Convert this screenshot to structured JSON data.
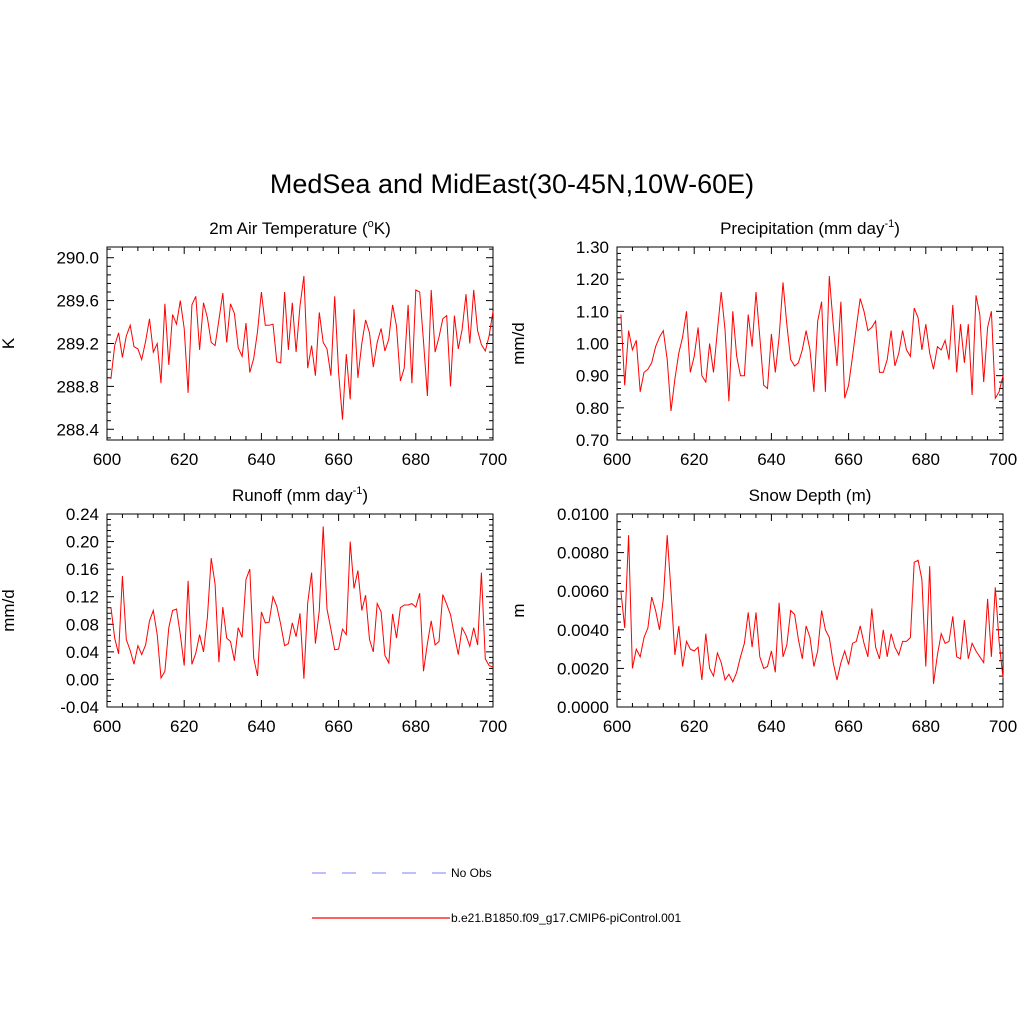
{
  "figure": {
    "title": "MedSea and MidEast(30-45N,10W-60E)",
    "legend": [
      {
        "label": "No Obs",
        "color": "#9999ff",
        "style": "dashed"
      },
      {
        "label": "b.e21.B1850.f09_g17.CMIP6-piControl.001",
        "color": "#ff0000",
        "style": "solid"
      }
    ]
  },
  "chart_data": [
    {
      "type": "line",
      "title": "2m Air Temperature (",
      "title_sup": "o",
      "title_after": "K)",
      "xlabel": "",
      "ylabel": "K",
      "xlim": [
        600,
        700
      ],
      "ylim": [
        288.3,
        290.1
      ],
      "xticks": [
        "600",
        "620",
        "640",
        "660",
        "680",
        "700"
      ],
      "yticks": [
        "288.4",
        "288.8",
        "289.2",
        "289.6",
        "290.0"
      ],
      "series": [
        {
          "name": "b.e21.B1850.f09_g17.CMIP6-piControl.001",
          "color": "#ff0000",
          "x_start": 601,
          "values": [
            288.87,
            289.18,
            289.3,
            289.07,
            289.27,
            289.37,
            289.17,
            289.15,
            289.05,
            289.22,
            289.43,
            289.12,
            289.2,
            288.83,
            289.57,
            289.0,
            289.47,
            289.38,
            289.6,
            289.34,
            288.74,
            289.56,
            289.64,
            289.14,
            289.58,
            289.44,
            289.21,
            289.18,
            289.42,
            289.67,
            289.21,
            289.57,
            289.48,
            289.16,
            289.08,
            289.39,
            288.93,
            289.06,
            289.31,
            289.68,
            289.37,
            289.37,
            289.38,
            289.03,
            289.02,
            289.68,
            289.14,
            289.58,
            289.12,
            289.55,
            289.83,
            288.97,
            289.18,
            288.9,
            289.49,
            289.21,
            289.15,
            288.9,
            289.64,
            288.93,
            288.49,
            289.1,
            288.68,
            289.52,
            288.88,
            289.2,
            289.42,
            289.3,
            288.98,
            289.21,
            289.34,
            289.13,
            289.24,
            289.56,
            289.36,
            288.85,
            288.97,
            289.56,
            288.83,
            289.7,
            289.68,
            289.22,
            288.71,
            289.7,
            289.12,
            289.26,
            289.43,
            289.46,
            288.8,
            289.46,
            289.15,
            289.33,
            289.66,
            289.2,
            289.7,
            289.32,
            289.19,
            289.13,
            289.27,
            289.5
          ]
        }
      ]
    },
    {
      "type": "line",
      "title": "Precipitation (mm day",
      "title_sup": "-1",
      "title_after": ")",
      "xlabel": "",
      "ylabel": "mm/d",
      "xlim": [
        600,
        700
      ],
      "ylim": [
        0.7,
        1.3
      ],
      "xticks": [
        "600",
        "620",
        "640",
        "660",
        "680",
        "700"
      ],
      "yticks": [
        "0.70",
        "0.80",
        "0.90",
        "1.00",
        "1.10",
        "1.20",
        "1.30"
      ],
      "series": [
        {
          "name": "b.e21.B1850.f09_g17.CMIP6-piControl.001",
          "color": "#ff0000",
          "x_start": 601,
          "values": [
            1.09,
            0.87,
            1.04,
            0.98,
            1.01,
            0.85,
            0.91,
            0.92,
            0.94,
            0.99,
            1.02,
            1.04,
            0.95,
            0.79,
            0.89,
            0.97,
            1.02,
            1.1,
            0.91,
            0.96,
            1.05,
            0.9,
            0.88,
            1.0,
            0.91,
            1.04,
            1.16,
            1.04,
            0.82,
            1.1,
            0.96,
            0.9,
            0.9,
            1.09,
            0.99,
            1.16,
            1.02,
            0.87,
            0.86,
            1.03,
            0.91,
            1.02,
            1.19,
            1.06,
            0.95,
            0.93,
            0.94,
            0.98,
            1.04,
            0.98,
            0.85,
            1.07,
            1.13,
            0.85,
            1.21,
            1.06,
            0.93,
            1.13,
            0.83,
            0.87,
            0.96,
            1.05,
            1.14,
            1.1,
            1.04,
            1.05,
            1.07,
            0.91,
            0.91,
            0.95,
            1.04,
            0.93,
            0.97,
            1.04,
            0.98,
            0.96,
            1.11,
            1.08,
            0.98,
            1.06,
            0.97,
            0.92,
            0.99,
            0.98,
            1.01,
            0.95,
            1.12,
            0.91,
            1.06,
            0.94,
            1.06,
            0.84,
            1.15,
            1.09,
            0.88,
            1.05,
            1.1,
            0.83,
            0.85,
            0.9
          ]
        }
      ]
    },
    {
      "type": "line",
      "title": "Runoff (mm day",
      "title_sup": "-1",
      "title_after": ")",
      "xlabel": "",
      "ylabel": "mm/d",
      "xlim": [
        600,
        700
      ],
      "ylim": [
        -0.04,
        0.24
      ],
      "xticks": [
        "600",
        "620",
        "640",
        "660",
        "680",
        "700"
      ],
      "yticks": [
        "-0.04",
        "0.00",
        "0.04",
        "0.08",
        "0.12",
        "0.16",
        "0.20",
        "0.24"
      ],
      "series": [
        {
          "name": "b.e21.B1850.f09_g17.CMIP6-piControl.001",
          "color": "#ff0000",
          "x_start": 601,
          "values": [
            0.105,
            0.06,
            0.037,
            0.15,
            0.058,
            0.042,
            0.022,
            0.049,
            0.036,
            0.05,
            0.085,
            0.1,
            0.065,
            0.002,
            0.012,
            0.075,
            0.1,
            0.102,
            0.065,
            0.02,
            0.143,
            0.022,
            0.038,
            0.065,
            0.04,
            0.09,
            0.176,
            0.138,
            0.025,
            0.105,
            0.06,
            0.055,
            0.027,
            0.075,
            0.061,
            0.145,
            0.16,
            0.031,
            0.005,
            0.098,
            0.082,
            0.083,
            0.12,
            0.106,
            0.08,
            0.049,
            0.052,
            0.082,
            0.062,
            0.096,
            0.001,
            0.111,
            0.155,
            0.052,
            0.1,
            0.222,
            0.102,
            0.073,
            0.043,
            0.044,
            0.073,
            0.065,
            0.2,
            0.132,
            0.158,
            0.1,
            0.122,
            0.058,
            0.04,
            0.11,
            0.098,
            0.035,
            0.024,
            0.095,
            0.06,
            0.104,
            0.108,
            0.108,
            0.11,
            0.105,
            0.125,
            0.012,
            0.052,
            0.085,
            0.05,
            0.055,
            0.123,
            0.109,
            0.094,
            0.064,
            0.036,
            0.075,
            0.064,
            0.048,
            0.075,
            0.05,
            0.155,
            0.03,
            0.02,
            0.018
          ]
        }
      ]
    },
    {
      "type": "line",
      "title": "Snow Depth (m)",
      "title_sup": "",
      "title_after": "",
      "xlabel": "",
      "ylabel": "m",
      "xlim": [
        600,
        700
      ],
      "ylim": [
        0.0,
        0.01
      ],
      "xticks": [
        "600",
        "620",
        "640",
        "660",
        "680",
        "700"
      ],
      "yticks": [
        "0.0000",
        "0.0020",
        "0.0040",
        "0.0060",
        "0.0080",
        "0.0100"
      ],
      "series": [
        {
          "name": "b.e21.B1850.f09_g17.CMIP6-piControl.001",
          "color": "#ff0000",
          "x_start": 601,
          "values": [
            0.006,
            0.0041,
            0.0089,
            0.002,
            0.003,
            0.0026,
            0.0036,
            0.0041,
            0.0057,
            0.005,
            0.004,
            0.0056,
            0.0089,
            0.006,
            0.0027,
            0.0042,
            0.0021,
            0.0034,
            0.003,
            0.0029,
            0.0031,
            0.0014,
            0.0038,
            0.002,
            0.0016,
            0.0028,
            0.0023,
            0.0014,
            0.0017,
            0.0013,
            0.0018,
            0.0026,
            0.0033,
            0.0049,
            0.0031,
            0.0049,
            0.0026,
            0.002,
            0.0021,
            0.0029,
            0.0018,
            0.0054,
            0.0026,
            0.0032,
            0.005,
            0.0048,
            0.0035,
            0.0025,
            0.0042,
            0.0036,
            0.0021,
            0.0029,
            0.005,
            0.004,
            0.0036,
            0.0023,
            0.0014,
            0.0023,
            0.0029,
            0.0022,
            0.0033,
            0.0034,
            0.0042,
            0.0033,
            0.0026,
            0.0051,
            0.0031,
            0.0025,
            0.004,
            0.0026,
            0.0038,
            0.0031,
            0.0027,
            0.0034,
            0.0034,
            0.0036,
            0.0075,
            0.0076,
            0.0066,
            0.0021,
            0.0073,
            0.0012,
            0.0027,
            0.0038,
            0.0033,
            0.0034,
            0.0047,
            0.0026,
            0.0025,
            0.0045,
            0.0025,
            0.0033,
            0.0029,
            0.0026,
            0.0023,
            0.0056,
            0.0026,
            0.0062,
            0.0034,
            0.0015
          ]
        }
      ]
    }
  ]
}
